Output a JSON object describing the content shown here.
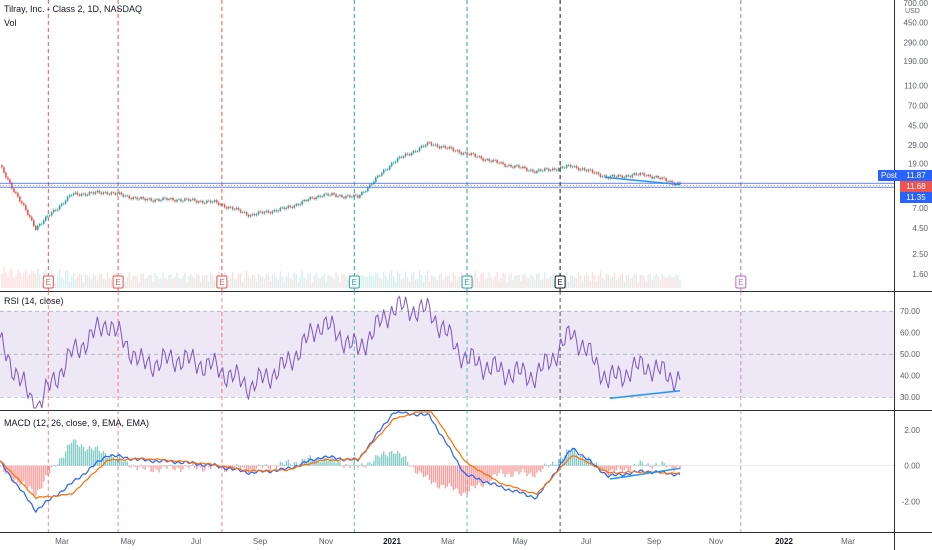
{
  "header": {
    "title": "Tilray, Inc. - Class 2, 1D, NASDAQ",
    "vol_label": "Vol",
    "currency": "USD",
    "rsi_label": "RSI (14, close)",
    "macd_label": "MACD (12, 26, close, 9, EMA, EMA)"
  },
  "price_axis": {
    "ticks": [
      "700.00",
      "450.00",
      "290.00",
      "190.00",
      "110.00",
      "70.00",
      "45.00",
      "29.00",
      "19.00",
      "11.87",
      "7.00",
      "4.50",
      "2.50",
      "1.60"
    ],
    "scale": "log"
  },
  "rsi_axis": {
    "ticks": [
      "70.00",
      "60.00",
      "50.00",
      "40.00",
      "30.00"
    ]
  },
  "macd_axis": {
    "ticks": [
      "2.00",
      "0.00",
      "-2.00"
    ]
  },
  "x_axis": {
    "ticks": [
      "Mar",
      "May",
      "Jul",
      "Sep",
      "Nov",
      "2021",
      "Mar",
      "May",
      "Jul",
      "Sep",
      "Nov",
      "2022",
      "Mar"
    ]
  },
  "post_label": {
    "text": "Post",
    "value": "11.87"
  },
  "last_price": {
    "value": "11.68",
    "color": "#ef5350"
  },
  "blue_level": {
    "value": "11.35",
    "color": "#2962ff"
  },
  "earnings_markers": [
    {
      "label": "E",
      "color": "#ef5350"
    },
    {
      "label": "E",
      "color": "#ef5350"
    },
    {
      "label": "E",
      "color": "#ef5350"
    },
    {
      "label": "E",
      "color": "#26a69a"
    },
    {
      "label": "E",
      "color": "#26a69a"
    },
    {
      "label": "E",
      "color": "#131722"
    },
    {
      "label": "E",
      "color": "#ba68c8"
    }
  ],
  "colors": {
    "up": "#26a69a",
    "down": "#ef5350",
    "rsi_line": "#7e57c2",
    "rsi_band": "#ede7f6",
    "macd_line": "#2962ff",
    "signal_line": "#ff6d00",
    "trendline": "#2196f3"
  },
  "chart_data": [
    {
      "type": "candlestick",
      "title": "Tilray, Inc. - Class 2, 1D, NASDAQ",
      "x": [
        "2020-02",
        "2020-03",
        "2020-04",
        "2020-05",
        "2020-06",
        "2020-07",
        "2020-08",
        "2020-09",
        "2020-10",
        "2020-11",
        "2020-12",
        "2021-01",
        "2021-02",
        "2021-03",
        "2021-04",
        "2021-05",
        "2021-06",
        "2021-07",
        "2021-08",
        "2021-09"
      ],
      "close": [
        18,
        4.5,
        9.5,
        10,
        8.5,
        8.5,
        8,
        6,
        7,
        9.5,
        9,
        20,
        30,
        24,
        19,
        16,
        18,
        14,
        15,
        12
      ],
      "y_scale": "log",
      "last": 11.68
    },
    {
      "type": "line",
      "title": "RSI (14, close)",
      "x": [
        "2020-02",
        "2020-03",
        "2020-04",
        "2020-05",
        "2020-06",
        "2020-07",
        "2020-08",
        "2020-09",
        "2020-10",
        "2020-11",
        "2020-12",
        "2021-01",
        "2021-02",
        "2021-03",
        "2021-04",
        "2021-05",
        "2021-06",
        "2021-07",
        "2021-08",
        "2021-09"
      ],
      "values": [
        55,
        25,
        50,
        65,
        45,
        48,
        44,
        35,
        45,
        65,
        52,
        72,
        70,
        48,
        42,
        40,
        60,
        38,
        45,
        38
      ],
      "ylim": [
        25,
        78
      ],
      "bands": [
        30,
        70
      ]
    },
    {
      "type": "line",
      "title": "MACD (12, 26, close, 9, EMA, EMA)",
      "x": [
        "2020-02",
        "2020-03",
        "2020-04",
        "2020-05",
        "2020-06",
        "2020-07",
        "2020-08",
        "2020-09",
        "2020-10",
        "2020-11",
        "2020-12",
        "2021-01",
        "2021-02",
        "2021-03",
        "2021-04",
        "2021-05",
        "2021-06",
        "2021-07",
        "2021-08",
        "2021-09"
      ],
      "series": [
        {
          "name": "MACD",
          "values": [
            0.2,
            -2.5,
            -1.0,
            0.6,
            0.3,
            0.2,
            0.0,
            -0.4,
            -0.2,
            0.5,
            0.3,
            3.0,
            2.8,
            -0.5,
            -1.2,
            -1.8,
            1.0,
            -0.6,
            -0.3,
            -0.5
          ]
        },
        {
          "name": "Signal",
          "values": [
            0.3,
            -1.8,
            -1.6,
            0.3,
            0.4,
            0.25,
            0.05,
            -0.3,
            -0.25,
            0.3,
            0.35,
            2.6,
            3.2,
            0.2,
            -1.0,
            -1.6,
            0.6,
            -0.4,
            -0.35,
            -0.45
          ]
        }
      ],
      "ylim": [
        -3.6,
        3.0
      ]
    }
  ]
}
